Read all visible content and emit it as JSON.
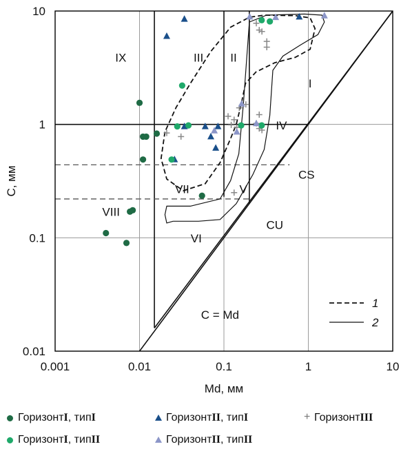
{
  "chart_data": {
    "type": "scatter",
    "xscale": "log",
    "yscale": "log",
    "xlim": [
      0.001,
      10
    ],
    "ylim": [
      0.01,
      10
    ],
    "xlabel": "Md, мм",
    "ylabel": "C, мм",
    "xticks": [
      "0.001",
      "0.01",
      "0.1",
      "1",
      "10"
    ],
    "yticks": [
      "0.01",
      "0.1",
      "1",
      "10"
    ],
    "grid": true,
    "series": [
      {
        "name": "Горизонт I, тип I",
        "marker": "circle",
        "color": "#1f6b45",
        "points": [
          [
            0.01,
            1.55
          ],
          [
            0.011,
            0.78
          ],
          [
            0.012,
            0.78
          ],
          [
            0.011,
            0.49
          ],
          [
            0.016,
            0.83
          ],
          [
            0.0077,
            0.17
          ],
          [
            0.0083,
            0.175
          ],
          [
            0.004,
            0.11
          ],
          [
            0.007,
            0.09
          ],
          [
            0.055,
            0.235
          ]
        ]
      },
      {
        "name": "Горизонт II, тип I",
        "marker": "triangle",
        "color": "#1a4f8a",
        "points": [
          [
            0.021,
            6.0
          ],
          [
            0.034,
            8.5
          ],
          [
            0.026,
            0.49
          ],
          [
            0.034,
            0.96
          ],
          [
            0.06,
            0.96
          ],
          [
            0.07,
            0.78
          ],
          [
            0.085,
            0.96
          ],
          [
            0.08,
            0.62
          ],
          [
            0.78,
            8.9
          ]
        ]
      },
      {
        "name": "Горизонт III",
        "marker": "plus",
        "color": "#888888",
        "points": [
          [
            0.021,
            0.84
          ],
          [
            0.031,
            0.78
          ],
          [
            0.112,
            1.18
          ],
          [
            0.132,
            1.1
          ],
          [
            0.122,
            0.99
          ],
          [
            0.142,
            0.94
          ],
          [
            0.152,
            1.4
          ],
          [
            0.182,
            1.5
          ],
          [
            0.242,
            1.02
          ],
          [
            0.262,
            1.22
          ],
          [
            0.262,
            0.92
          ],
          [
            0.282,
            0.89
          ],
          [
            0.242,
            7.8
          ],
          [
            0.262,
            6.8
          ],
          [
            0.282,
            6.6
          ],
          [
            0.322,
            5.4
          ],
          [
            0.322,
            4.8
          ],
          [
            0.132,
            0.25
          ]
        ]
      },
      {
        "name": "Горизонт I, тип II",
        "marker": "circle",
        "color": "#1fa96a",
        "points": [
          [
            0.032,
            2.2
          ],
          [
            0.028,
            0.96
          ],
          [
            0.038,
            0.98
          ],
          [
            0.024,
            0.49
          ],
          [
            0.16,
            0.98
          ],
          [
            0.28,
            0.98
          ],
          [
            0.28,
            8.3
          ],
          [
            0.35,
            8.1
          ]
        ]
      },
      {
        "name": "Горизонт II, тип II",
        "marker": "triangle",
        "color": "#8c96c8",
        "points": [
          [
            0.077,
            0.88
          ],
          [
            0.142,
            0.86
          ],
          [
            0.162,
            1.52
          ],
          [
            0.202,
            8.9
          ],
          [
            0.242,
            1.02
          ],
          [
            0.41,
            8.8
          ],
          [
            1.55,
            9.1
          ]
        ]
      }
    ],
    "curves": [
      {
        "name": "1",
        "style": "dashed"
      },
      {
        "name": "2",
        "style": "solid"
      }
    ],
    "region_labels": [
      "IX",
      "III",
      "II",
      "I",
      "IV",
      "V",
      "VII",
      "VI",
      "VIII"
    ],
    "line_labels": [
      "CS",
      "CU",
      "C = Md"
    ]
  },
  "legend": [
    {
      "mark": "●",
      "prefix": "Горизонт ",
      "roman": "I",
      "suffix": ", тип ",
      "type_roman": "I"
    },
    {
      "mark": "▲",
      "prefix": "Горизонт ",
      "roman": "II",
      "suffix": ", тип ",
      "type_roman": "I"
    },
    {
      "mark": "+",
      "prefix": "Горизонт ",
      "roman": "III",
      "suffix": "",
      "type_roman": ""
    },
    {
      "mark": "●",
      "prefix": "Горизонт ",
      "roman": "I",
      "suffix": ", тип ",
      "type_roman": "II"
    },
    {
      "mark": "▲",
      "prefix": "Горизонт ",
      "roman": "II",
      "suffix": ", тип ",
      "type_roman": "II"
    }
  ]
}
